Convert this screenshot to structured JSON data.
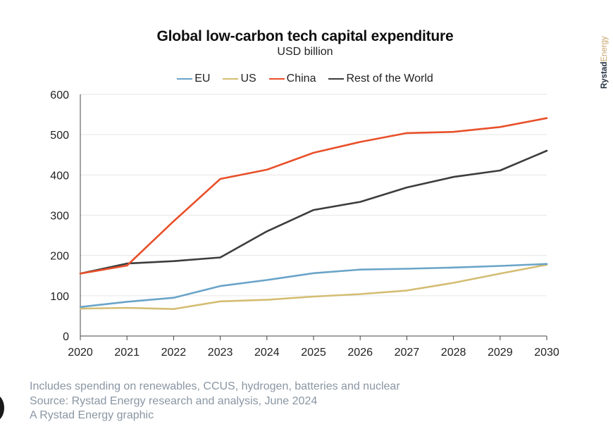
{
  "header": {
    "title": "Global low-carbon tech capital expenditure",
    "subtitle": "USD billion",
    "brand": "RystadEnergy"
  },
  "chart_data": {
    "type": "line",
    "title": "Global low-carbon tech capital expenditure",
    "subtitle": "USD billion",
    "xlabel": "",
    "ylabel": "",
    "x": [
      2020,
      2021,
      2022,
      2023,
      2024,
      2025,
      2026,
      2027,
      2028,
      2029,
      2030
    ],
    "ylim": [
      0,
      600
    ],
    "yticks": [
      0,
      100,
      200,
      300,
      400,
      500,
      600
    ],
    "grid": true,
    "legend_position": "top-center",
    "series": [
      {
        "name": "EU",
        "color": "#6aa4c8",
        "values": [
          72,
          85,
          95,
          124,
          139,
          156,
          165,
          167,
          170,
          174,
          179
        ]
      },
      {
        "name": "US",
        "color": "#d4bd73",
        "values": [
          68,
          70,
          67,
          86,
          90,
          98,
          104,
          113,
          132,
          155,
          177
        ]
      },
      {
        "name": "China",
        "color": "#e8502a",
        "values": [
          155,
          175,
          285,
          390,
          413,
          455,
          482,
          504,
          507,
          519,
          541
        ]
      },
      {
        "name": "Rest of the World",
        "color": "#3d3d3d",
        "values": [
          155,
          180,
          186,
          195,
          260,
          313,
          333,
          369,
          395,
          411,
          460
        ]
      }
    ]
  },
  "footnotes": {
    "line1": "Includes spending on renewables, CCUS, hydrogen, batteries and nuclear",
    "line2": "Source: Rystad Energy research and analysis, June 2024",
    "line3": "A Rystad Energy graphic"
  }
}
